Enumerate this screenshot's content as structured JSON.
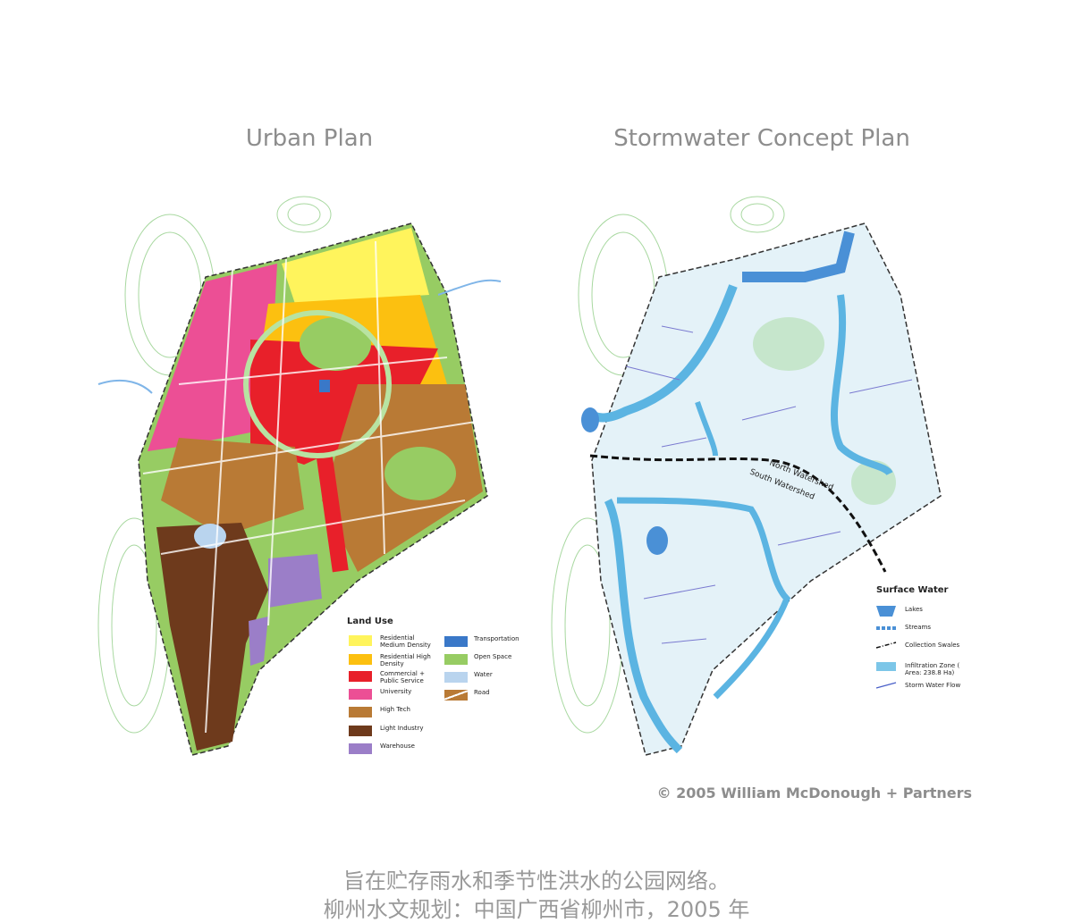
{
  "titles": {
    "urban_plan": "Urban Plan",
    "stormwater_plan": "Stormwater Concept Plan"
  },
  "land_use_legend": {
    "title": "Land Use",
    "items": [
      {
        "label": "Residential Medium Density",
        "color": "#fff45c"
      },
      {
        "label": "Residential High Density",
        "color": "#fcc010"
      },
      {
        "label": "Commercial + Public Service",
        "color": "#e8202a"
      },
      {
        "label": "University",
        "color": "#ec4f95"
      },
      {
        "label": "High Tech",
        "color": "#b97a35"
      },
      {
        "label": "Light Industry",
        "color": "#6e3a1c"
      },
      {
        "label": "Warehouse",
        "color": "#9b7ec8"
      },
      {
        "label": "Transportation",
        "color": "#3a78c8"
      },
      {
        "label": "Open Space",
        "color": "#97cc63"
      },
      {
        "label": "Water",
        "color": "#b9d4ee"
      },
      {
        "label": "Road",
        "color": "#b97a35"
      }
    ]
  },
  "map_labels": [
    "North Watershed",
    "South Watershed"
  ],
  "surface_water_legend": {
    "title": "Surface Water",
    "items": [
      {
        "label": "Lakes"
      },
      {
        "label": "Streams"
      },
      {
        "label": "Collection Swales"
      },
      {
        "label": "Infiltration Zone ( Area: 238.8 Ha)"
      },
      {
        "label": "Storm Water Flow"
      }
    ]
  },
  "credit": "© 2005 William McDonough + Partners",
  "caption": [
    "旨在贮存雨水和季节性洪水的公园网络。",
    "柳州水文规划：中国广西省柳州市，2005 年"
  ]
}
